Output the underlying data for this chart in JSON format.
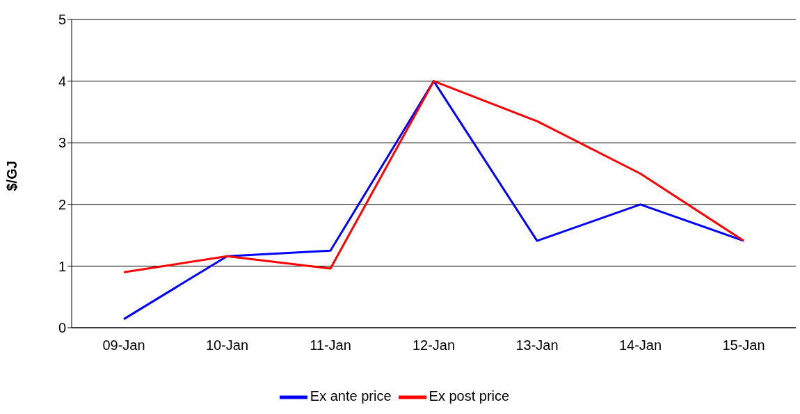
{
  "chart_data": {
    "type": "line",
    "ylabel": "$/GJ",
    "categories": [
      "09-Jan",
      "10-Jan",
      "11-Jan",
      "12-Jan",
      "13-Jan",
      "14-Jan",
      "15-Jan"
    ],
    "series": [
      {
        "name": "Ex ante price",
        "color": "#0000ff",
        "values": [
          0.14,
          1.16,
          1.25,
          4.0,
          1.41,
          2.0,
          1.41
        ]
      },
      {
        "name": "Ex post price",
        "color": "#ff0000",
        "values": [
          0.9,
          1.16,
          0.96,
          4.0,
          3.35,
          2.5,
          1.41
        ]
      }
    ],
    "ylim": [
      0,
      5
    ],
    "yticks": [
      0,
      1,
      2,
      3,
      4,
      5
    ],
    "grid": "y",
    "legend": "bottom",
    "marker": "none",
    "line_style": "solid"
  }
}
